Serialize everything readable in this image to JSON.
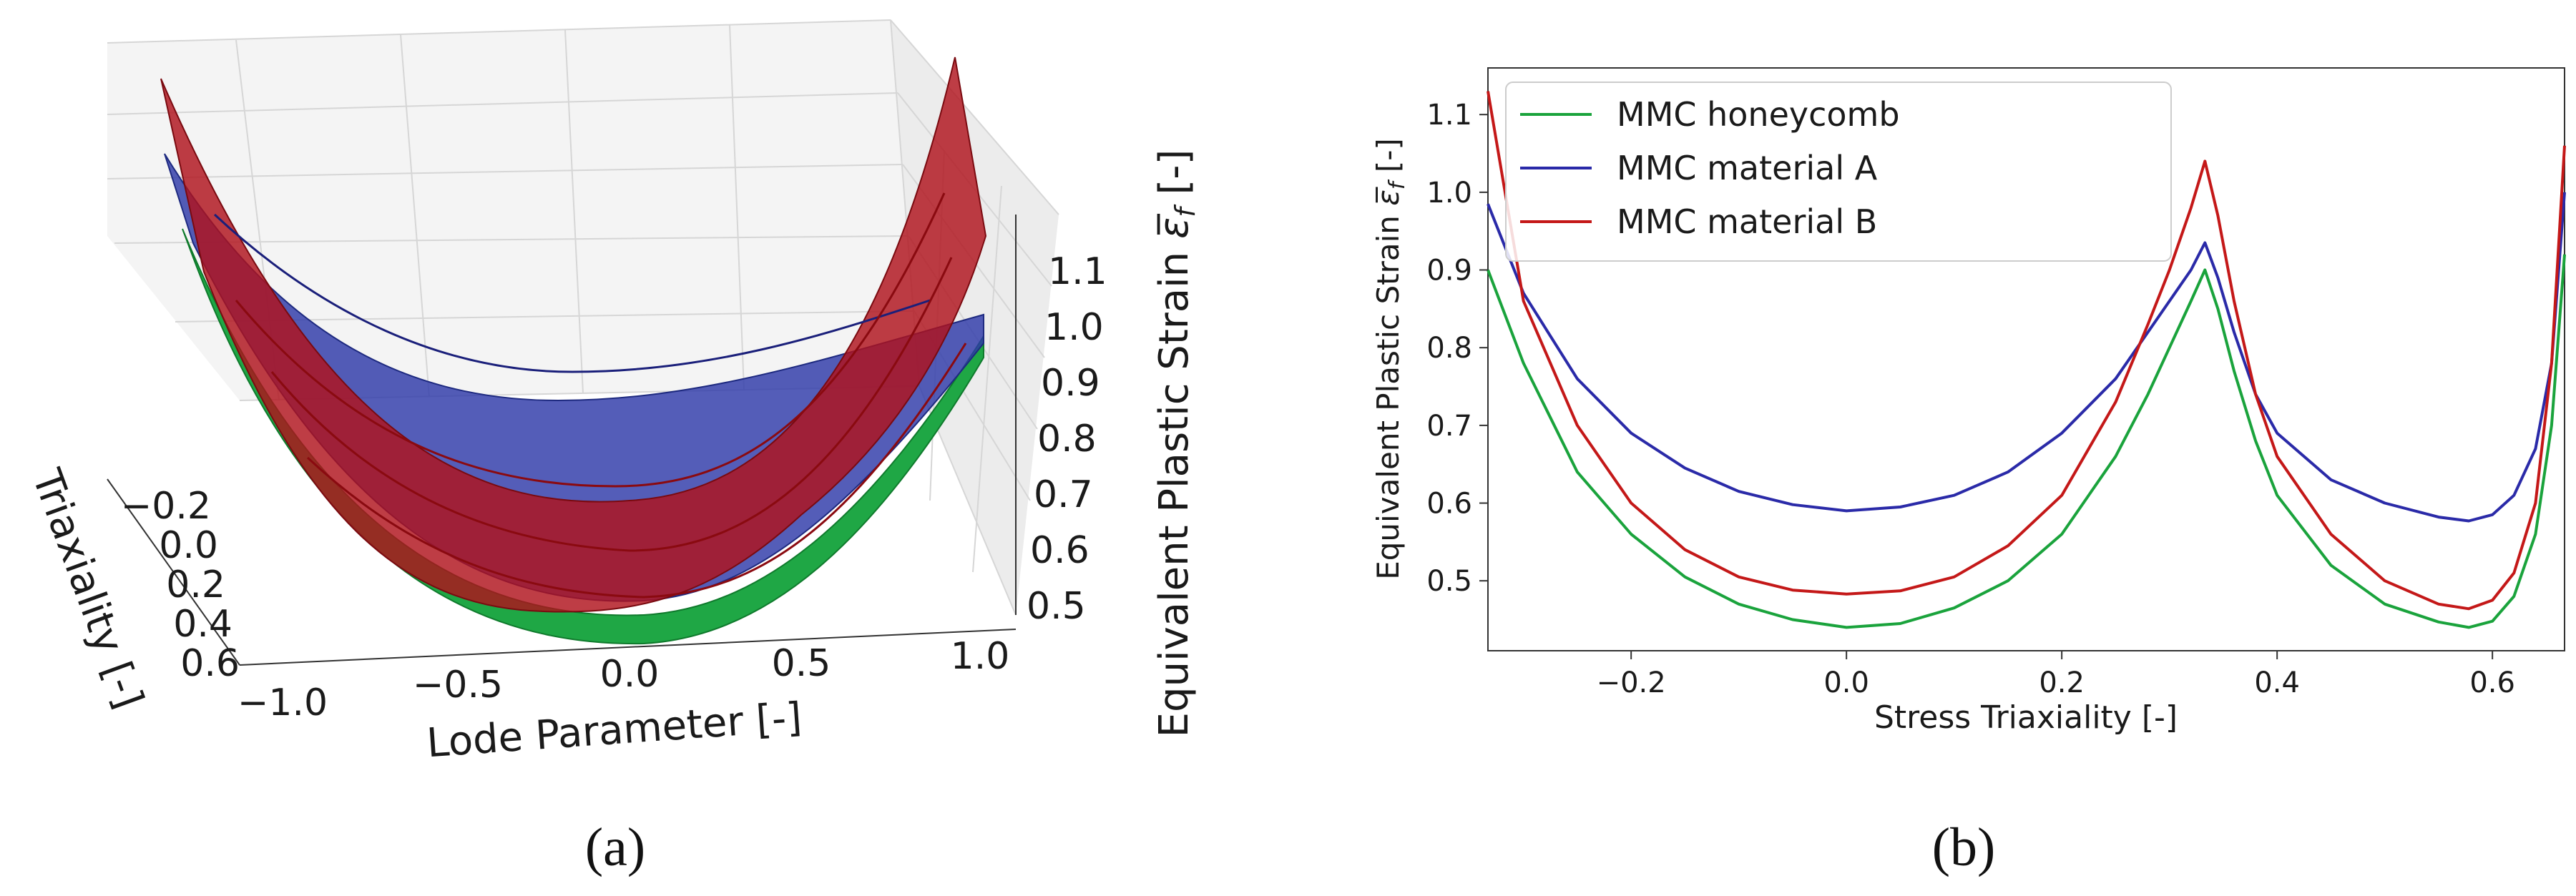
{
  "figure": {
    "panel_a_label": "(a)",
    "panel_b_label": "(b)"
  },
  "chart_data": [
    {
      "type": "surface3d",
      "panel": "(a)",
      "xlabel": "Lode Parameter [-]",
      "ylabel": "Triaxiality [-]",
      "zlabel": "Equivalent Plastic Strain ε̅f [-]",
      "zlabel_main": "Equivalent Plastic Strain ",
      "zlabel_sym": "ε̅",
      "zlabel_sub": "f",
      "zlabel_tail": " [-]",
      "x_ticks": [
        "−1.0",
        "−0.5",
        "0.0",
        "0.5",
        "1.0"
      ],
      "y_ticks": [
        "−0.2",
        "0.0",
        "0.2",
        "0.4",
        "0.6"
      ],
      "z_ticks": [
        "0.5",
        "0.6",
        "0.7",
        "0.8",
        "0.9",
        "1.0",
        "1.1"
      ],
      "series": [
        {
          "name": "MMC honeycomb",
          "color": "#1aa33c"
        },
        {
          "name": "MMC material A",
          "color": "#2a2aa8"
        },
        {
          "name": "MMC material B",
          "color": "#c41818"
        }
      ]
    },
    {
      "type": "line",
      "panel": "(b)",
      "xlabel": "Stress Triaxiality [-]",
      "ylabel": "Equivalent Plastic Strain ε̅f [-]",
      "ylabel_main": "Equivalent Plastic Strain ",
      "ylabel_sym": "ε̅",
      "ylabel_sub": "f",
      "ylabel_tail": " [-]",
      "xlim": [
        -0.333,
        0.667
      ],
      "ylim": [
        0.41,
        1.16
      ],
      "x_ticks": [
        -0.2,
        0.0,
        0.2,
        0.4,
        0.6
      ],
      "x_tick_labels": [
        "−0.2",
        "0.0",
        "0.2",
        "0.4",
        "0.6"
      ],
      "y_ticks": [
        0.5,
        0.6,
        0.7,
        0.8,
        0.9,
        1.0,
        1.1
      ],
      "y_tick_labels": [
        "0.5",
        "0.6",
        "0.7",
        "0.8",
        "0.9",
        "1.0",
        "1.1"
      ],
      "legend": "upper-left",
      "series": [
        {
          "name": "MMC honeycomb",
          "color": "#1aa33c",
          "x": [
            -0.333,
            -0.3,
            -0.25,
            -0.2,
            -0.15,
            -0.1,
            -0.05,
            0.0,
            0.05,
            0.1,
            0.15,
            0.2,
            0.25,
            0.28,
            0.3,
            0.32,
            0.333,
            0.345,
            0.36,
            0.38,
            0.4,
            0.45,
            0.5,
            0.55,
            0.578,
            0.6,
            0.62,
            0.64,
            0.655,
            0.667
          ],
          "y": [
            0.9,
            0.78,
            0.64,
            0.56,
            0.505,
            0.47,
            0.45,
            0.44,
            0.445,
            0.465,
            0.5,
            0.56,
            0.66,
            0.74,
            0.8,
            0.86,
            0.9,
            0.85,
            0.77,
            0.68,
            0.61,
            0.52,
            0.47,
            0.447,
            0.44,
            0.448,
            0.48,
            0.56,
            0.7,
            0.92
          ]
        },
        {
          "name": "MMC material A",
          "color": "#2a2aa8",
          "x": [
            -0.333,
            -0.3,
            -0.25,
            -0.2,
            -0.15,
            -0.1,
            -0.05,
            0.0,
            0.05,
            0.1,
            0.15,
            0.2,
            0.25,
            0.28,
            0.3,
            0.32,
            0.333,
            0.345,
            0.36,
            0.38,
            0.4,
            0.45,
            0.5,
            0.55,
            0.578,
            0.6,
            0.62,
            0.64,
            0.655,
            0.667
          ],
          "y": [
            0.985,
            0.87,
            0.76,
            0.69,
            0.645,
            0.615,
            0.598,
            0.59,
            0.595,
            0.61,
            0.64,
            0.69,
            0.76,
            0.82,
            0.86,
            0.9,
            0.935,
            0.89,
            0.82,
            0.74,
            0.69,
            0.63,
            0.6,
            0.582,
            0.577,
            0.585,
            0.61,
            0.67,
            0.78,
            1.0
          ]
        },
        {
          "name": "MMC material B",
          "color": "#c41818",
          "x": [
            -0.333,
            -0.3,
            -0.25,
            -0.2,
            -0.15,
            -0.1,
            -0.05,
            0.0,
            0.05,
            0.1,
            0.15,
            0.2,
            0.25,
            0.28,
            0.3,
            0.32,
            0.333,
            0.345,
            0.36,
            0.38,
            0.4,
            0.45,
            0.5,
            0.55,
            0.578,
            0.6,
            0.62,
            0.64,
            0.655,
            0.667
          ],
          "y": [
            1.13,
            0.86,
            0.7,
            0.6,
            0.54,
            0.505,
            0.488,
            0.483,
            0.487,
            0.505,
            0.545,
            0.61,
            0.73,
            0.83,
            0.9,
            0.98,
            1.04,
            0.97,
            0.86,
            0.74,
            0.66,
            0.56,
            0.5,
            0.47,
            0.464,
            0.475,
            0.51,
            0.6,
            0.78,
            1.06
          ]
        }
      ]
    }
  ]
}
